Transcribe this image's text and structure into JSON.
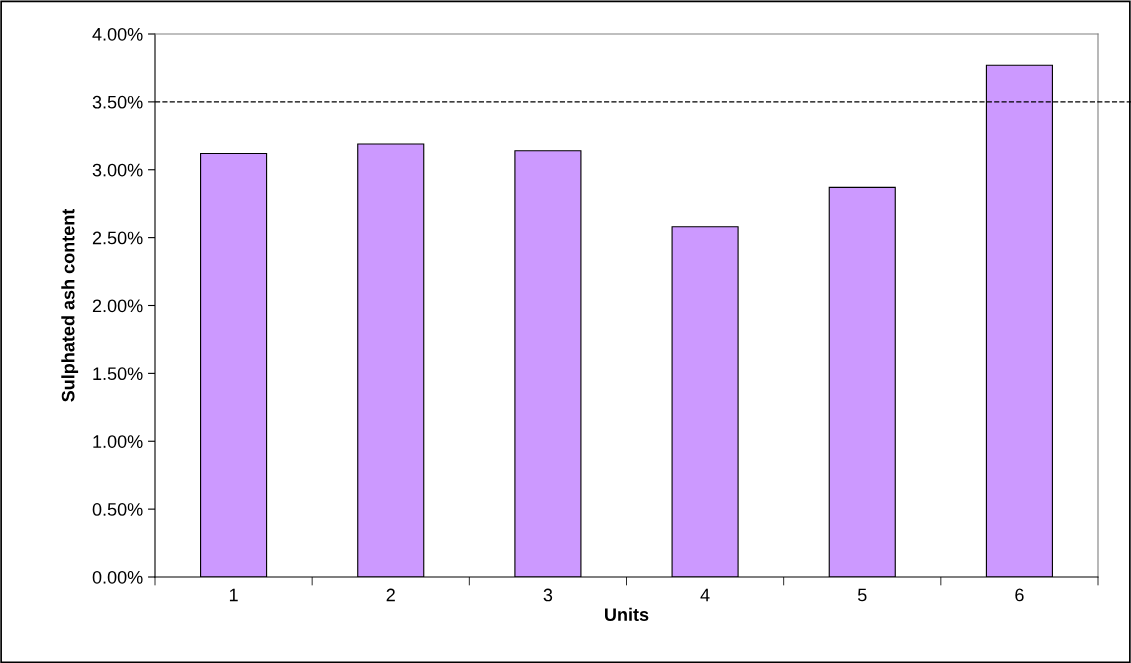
{
  "chart_data": {
    "type": "bar",
    "xlabel": "Units",
    "ylabel": "Sulphated ash content",
    "categories": [
      "1",
      "2",
      "3",
      "4",
      "5",
      "6"
    ],
    "values": [
      3.12,
      3.19,
      3.14,
      2.58,
      2.87,
      3.77
    ],
    "color": "#cc99ff",
    "ylim": [
      0,
      4
    ],
    "yticks": [
      {
        "value": 0,
        "label": "0.00%"
      },
      {
        "value": 0.5,
        "label": "0.50%"
      },
      {
        "value": 1,
        "label": "1.00%"
      },
      {
        "value": 1.5,
        "label": "1.50%"
      },
      {
        "value": 2,
        "label": "2.00%"
      },
      {
        "value": 2.5,
        "label": "2.50%"
      },
      {
        "value": 3,
        "label": "3.00%"
      },
      {
        "value": 3.5,
        "label": "3.50%"
      },
      {
        "value": 4,
        "label": "4.00%"
      }
    ],
    "ref_lines": [
      {
        "axis": "y",
        "value": 3.5,
        "color": "#000000",
        "line_style": "dashed"
      }
    ],
    "grid": false,
    "legend": false
  }
}
